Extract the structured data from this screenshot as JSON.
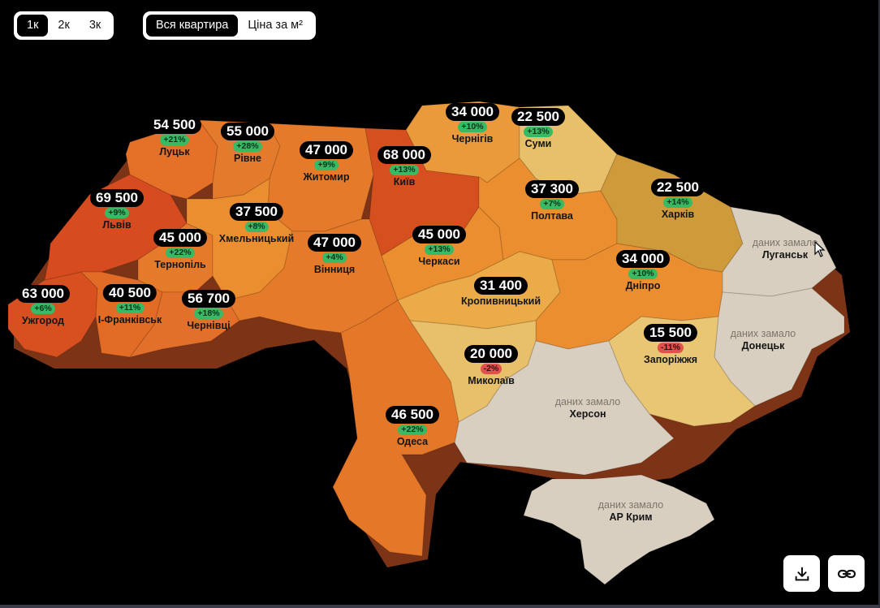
{
  "controls": {
    "rooms": [
      {
        "label": "1к",
        "active": true
      },
      {
        "label": "2к",
        "active": false
      },
      {
        "label": "3к",
        "active": false
      }
    ],
    "metric": [
      {
        "label": "Вся квартира",
        "active": true
      },
      {
        "label": "Ціна за м²",
        "active": false
      }
    ]
  },
  "colors": {
    "background": "#000000",
    "very_high": "#d64b1f",
    "high": "#e26f26",
    "mid": "#ea8e30",
    "low": "#eab24e",
    "lowest": "#e8c674",
    "kharkiv": "#cf9a3a",
    "no_data": "#d8cfc0",
    "positive_badge": "#39b964",
    "negative_badge": "#e2504e"
  },
  "regions": [
    {
      "name": "Луцьк",
      "price": "54 500",
      "change": "+21%",
      "sign": "pos"
    },
    {
      "name": "Рівне",
      "price": "55 000",
      "change": "+28%",
      "sign": "pos"
    },
    {
      "name": "Житомир",
      "price": "47 000",
      "change": "+9%",
      "sign": "pos"
    },
    {
      "name": "Київ",
      "price": "68 000",
      "change": "+13%",
      "sign": "pos"
    },
    {
      "name": "Чернігів",
      "price": "34 000",
      "change": "+10%",
      "sign": "pos"
    },
    {
      "name": "Суми",
      "price": "22 500",
      "change": "+13%",
      "sign": "pos"
    },
    {
      "name": "Львів",
      "price": "69 500",
      "change": "+9%",
      "sign": "pos"
    },
    {
      "name": "Хмельницький",
      "price": "37 500",
      "change": "+8%",
      "sign": "pos"
    },
    {
      "name": "Тернопіль",
      "price": "45 000",
      "change": "+22%",
      "sign": "pos"
    },
    {
      "name": "Вінниця",
      "price": "47 000",
      "change": "+4%",
      "sign": "pos"
    },
    {
      "name": "Черкаси",
      "price": "45 000",
      "change": "+13%",
      "sign": "pos"
    },
    {
      "name": "Полтава",
      "price": "37 300",
      "change": "+7%",
      "sign": "pos"
    },
    {
      "name": "Харків",
      "price": "22 500",
      "change": "+14%",
      "sign": "pos"
    },
    {
      "name": "Ужгород",
      "price": "63 000",
      "change": "+6%",
      "sign": "pos"
    },
    {
      "name": "І-Франківськ",
      "price": "40 500",
      "change": "+11%",
      "sign": "pos"
    },
    {
      "name": "Чернівці",
      "price": "56 700",
      "change": "+18%",
      "sign": "pos"
    },
    {
      "name": "Кропивницький",
      "price": "31 400",
      "change": "",
      "sign": "none"
    },
    {
      "name": "Дніпро",
      "price": "34 000",
      "change": "+10%",
      "sign": "pos"
    },
    {
      "name": "Запоріжжя",
      "price": "15 500",
      "change": "-11%",
      "sign": "neg"
    },
    {
      "name": "Миколаїв",
      "price": "20 000",
      "change": "-2%",
      "sign": "neg"
    },
    {
      "name": "Одеса",
      "price": "46 500",
      "change": "+22%",
      "sign": "pos"
    }
  ],
  "no_data_regions": [
    {
      "name": "Луганськ",
      "note": "даних замало"
    },
    {
      "name": "Донецьк",
      "note": "даних замало"
    },
    {
      "name": "Херсон",
      "note": "даних замало"
    },
    {
      "name": "АР Крим",
      "note": "даних замало"
    }
  ],
  "buttons": {
    "download_icon": "download-icon",
    "link_icon": "link-icon"
  }
}
